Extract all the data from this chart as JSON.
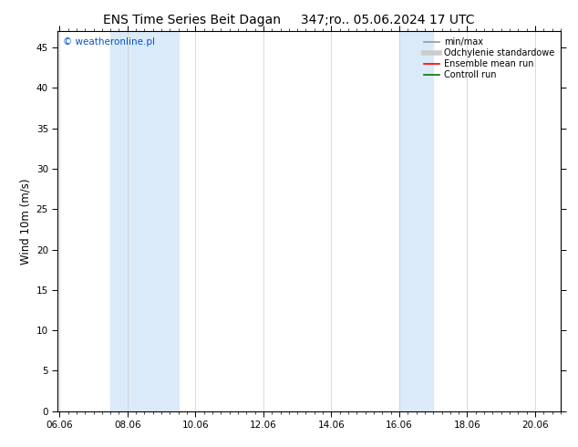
{
  "title_left": "ENS Time Series Beit Dagan",
  "title_right": "347;ro.. 05.06.2024 17 UTC",
  "ylabel": "Wind 10m (m/s)",
  "watermark": "© weatheronline.pl",
  "watermark_color": "#0055cc",
  "x_ticks_labels": [
    "06.06",
    "08.06",
    "10.06",
    "12.06",
    "14.06",
    "16.06",
    "18.06",
    "20.06"
  ],
  "x_ticks_pos": [
    0,
    2,
    4,
    6,
    8,
    10,
    12,
    14
  ],
  "x_minor_step": 0.25,
  "xlim": [
    -0.05,
    14.75
  ],
  "ylim": [
    0,
    47
  ],
  "yticks": [
    0,
    5,
    10,
    15,
    20,
    25,
    30,
    35,
    40,
    45
  ],
  "shaded_bands": [
    {
      "x_start": 1.5,
      "x_end": 3.5
    },
    {
      "x_start": 10.0,
      "x_end": 11.0
    }
  ],
  "shade_color": "#daeaf8",
  "grid_color": "#cccccc",
  "legend_items": [
    {
      "label": "min/max",
      "color": "#999999",
      "lw": 1.2
    },
    {
      "label": "Odchylenie standardowe",
      "color": "#cccccc",
      "lw": 4
    },
    {
      "label": "Ensemble mean run",
      "color": "#ff0000",
      "lw": 1.2
    },
    {
      "label": "Controll run",
      "color": "#007700",
      "lw": 1.2
    }
  ],
  "bg_color": "#ffffff",
  "title_fontsize": 10,
  "tick_fontsize": 7.5,
  "label_fontsize": 8.5,
  "watermark_fontsize": 7.5,
  "legend_fontsize": 7
}
